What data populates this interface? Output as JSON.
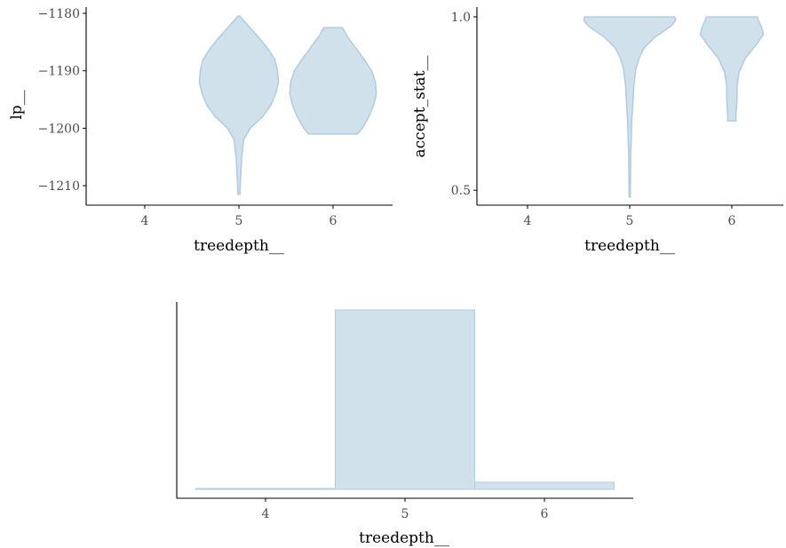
{
  "colors": {
    "fill": "#d1e1ec",
    "outline": "#b3cde0",
    "axis": "#000000",
    "tick_text": "#4d4d4d"
  },
  "chart_data": [
    {
      "type": "violin",
      "xlabel": "treedepth__",
      "ylabel": "lp__",
      "x_ticks": [
        "4",
        "5",
        "6"
      ],
      "ylim": [
        -1212,
        -1180
      ],
      "y_ticks": [
        -1180,
        -1190,
        -1200,
        -1210
      ],
      "y_tick_labels": [
        "−1180",
        "−1190",
        "−1200",
        "−1210"
      ],
      "groups": [
        {
          "x": "5",
          "profile": [
            {
              "y": -1211.5,
              "w": 0.01
            },
            {
              "y": -1208,
              "w": 0.02
            },
            {
              "y": -1205,
              "w": 0.03
            },
            {
              "y": -1202,
              "w": 0.05
            },
            {
              "y": -1200,
              "w": 0.12
            },
            {
              "y": -1198,
              "w": 0.25
            },
            {
              "y": -1196,
              "w": 0.34
            },
            {
              "y": -1194,
              "w": 0.39
            },
            {
              "y": -1192,
              "w": 0.42
            },
            {
              "y": -1190,
              "w": 0.41
            },
            {
              "y": -1188,
              "w": 0.38
            },
            {
              "y": -1186,
              "w": 0.3
            },
            {
              "y": -1184,
              "w": 0.2
            },
            {
              "y": -1182,
              "w": 0.09
            },
            {
              "y": -1180.5,
              "w": 0.01
            }
          ]
        },
        {
          "x": "6",
          "profile": [
            {
              "y": -1201,
              "w": 0.26
            },
            {
              "y": -1200,
              "w": 0.31
            },
            {
              "y": -1198,
              "w": 0.38
            },
            {
              "y": -1196,
              "w": 0.43
            },
            {
              "y": -1194,
              "w": 0.46
            },
            {
              "y": -1192,
              "w": 0.45
            },
            {
              "y": -1190,
              "w": 0.41
            },
            {
              "y": -1188,
              "w": 0.33
            },
            {
              "y": -1186,
              "w": 0.24
            },
            {
              "y": -1184,
              "w": 0.15
            },
            {
              "y": -1182.5,
              "w": 0.1
            }
          ]
        }
      ]
    },
    {
      "type": "violin",
      "xlabel": "treedepth__",
      "ylabel": "accept_stat__",
      "x_ticks": [
        "4",
        "5",
        "6"
      ],
      "ylim": [
        0.48,
        1.0
      ],
      "y_ticks": [
        1.0,
        0.5
      ],
      "y_tick_labels": [
        "1.0",
        "0.5"
      ],
      "groups": [
        {
          "x": "5",
          "profile": [
            {
              "y": 0.48,
              "w": 0.005
            },
            {
              "y": 0.6,
              "w": 0.01
            },
            {
              "y": 0.7,
              "w": 0.02
            },
            {
              "y": 0.75,
              "w": 0.03
            },
            {
              "y": 0.8,
              "w": 0.04
            },
            {
              "y": 0.85,
              "w": 0.06
            },
            {
              "y": 0.88,
              "w": 0.09
            },
            {
              "y": 0.91,
              "w": 0.14
            },
            {
              "y": 0.94,
              "w": 0.24
            },
            {
              "y": 0.96,
              "w": 0.34
            },
            {
              "y": 0.975,
              "w": 0.41
            },
            {
              "y": 0.99,
              "w": 0.45
            },
            {
              "y": 1.0,
              "w": 0.44
            }
          ]
        },
        {
          "x": "6",
          "profile": [
            {
              "y": 0.7,
              "w": 0.04
            },
            {
              "y": 0.72,
              "w": 0.04
            },
            {
              "y": 0.76,
              "w": 0.05
            },
            {
              "y": 0.8,
              "w": 0.05
            },
            {
              "y": 0.84,
              "w": 0.07
            },
            {
              "y": 0.88,
              "w": 0.13
            },
            {
              "y": 0.92,
              "w": 0.24
            },
            {
              "y": 0.95,
              "w": 0.31
            },
            {
              "y": 0.97,
              "w": 0.29
            },
            {
              "y": 0.99,
              "w": 0.26
            },
            {
              "y": 1.0,
              "w": 0.25
            }
          ]
        }
      ]
    },
    {
      "type": "bar",
      "xlabel": "treedepth__",
      "ylabel": "",
      "categories": [
        "4",
        "5",
        "6"
      ],
      "values": [
        1,
        200,
        8
      ],
      "ylim": [
        0,
        210
      ]
    }
  ]
}
